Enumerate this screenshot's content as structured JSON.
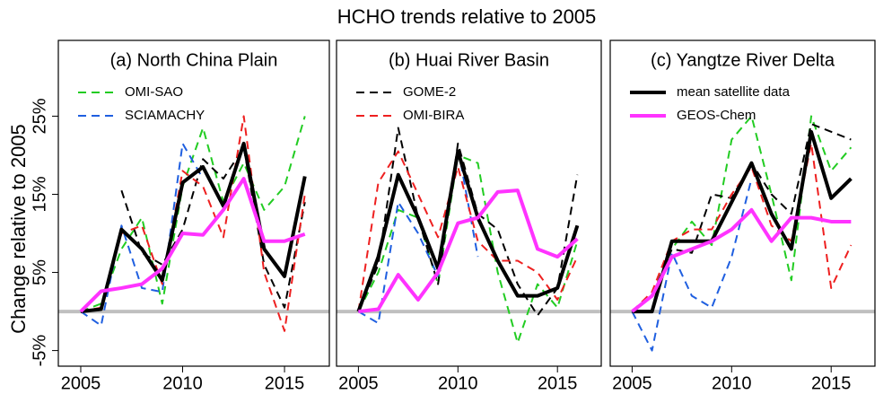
{
  "title": "HCHO trends relative to 2005",
  "y_label": "Change relative to 2005",
  "chart_data": [
    {
      "type": "line",
      "title": "(a) North China Plain",
      "x": [
        2005,
        2006,
        2007,
        2008,
        2009,
        2010,
        2011,
        2012,
        2013,
        2014,
        2015,
        2016
      ],
      "xlim": [
        2003.9,
        2017.2
      ],
      "xticks": [
        2005,
        2010,
        2015
      ],
      "ylim": [
        -7,
        34.7
      ],
      "yticks": [
        {
          "value": -5,
          "label": "-5%"
        },
        {
          "value": 5,
          "label": "5%"
        },
        {
          "value": 15,
          "label": "15%"
        },
        {
          "value": 25,
          "label": "25%"
        }
      ],
      "hline": 0,
      "legend": "top-left",
      "series": [
        {
          "name": "OMI-SAO",
          "color": "#22cc22",
          "style": "dashed",
          "values": [
            0,
            1,
            8,
            12,
            1,
            16,
            23.5,
            14,
            19,
            13,
            16,
            25
          ]
        },
        {
          "name": "SCIAMACHY",
          "color": "#1f5fe0",
          "style": "dashed",
          "values": [
            0,
            -1.8,
            11,
            3,
            2.5,
            21.5,
            17,
            null,
            null,
            null,
            null,
            null
          ]
        },
        {
          "color": "#000000",
          "style": "dashed",
          "values": [
            null,
            null,
            15.5,
            7.5,
            6,
            10.5,
            19.5,
            17,
            21,
            6,
            0.5,
            14
          ]
        },
        {
          "color": "#ee2020",
          "style": "dashed",
          "values": [
            0,
            0.5,
            10,
            11,
            3.5,
            18,
            16,
            9.5,
            25,
            5,
            -2.5,
            15
          ]
        },
        {
          "color": "#000000",
          "style": "bold",
          "values": [
            0,
            0.3,
            10.5,
            8,
            4,
            16.5,
            18.5,
            13.5,
            21.5,
            8,
            4.5,
            17.3
          ]
        },
        {
          "color": "#ff33ff",
          "style": "bold",
          "values": [
            0,
            2.6,
            3,
            3.5,
            5.5,
            10,
            9.8,
            13,
            17,
            9,
            9,
            9.9
          ]
        }
      ]
    },
    {
      "type": "line",
      "title": "(b) Huai River Basin",
      "x": [
        2005,
        2006,
        2007,
        2008,
        2009,
        2010,
        2011,
        2012,
        2013,
        2014,
        2015,
        2016
      ],
      "xlim": [
        2003.9,
        2017.2
      ],
      "xticks": [
        2005,
        2010,
        2015
      ],
      "ylim": [
        -7,
        34.7
      ],
      "hline": 0,
      "legend": "top-left",
      "series": [
        {
          "color": "#22cc22",
          "style": "dashed",
          "values": [
            0,
            5,
            13,
            12,
            3.5,
            20,
            19,
            5,
            -4,
            3.5,
            0.5,
            9
          ]
        },
        {
          "color": "#1f5fe0",
          "style": "dashed",
          "values": [
            0,
            -1.5,
            14,
            10,
            4.5,
            21,
            7,
            null,
            null,
            null,
            null,
            null
          ]
        },
        {
          "name": "GOME-2",
          "color": "#000000",
          "style": "dashed",
          "values": [
            0,
            6,
            23.5,
            12,
            3.5,
            21.5,
            12.5,
            10.5,
            3.5,
            -0.5,
            3,
            17.5
          ]
        },
        {
          "name": "OMI-BIRA",
          "color": "#ee2020",
          "style": "dashed",
          "values": [
            0,
            16.5,
            20.5,
            15,
            9.5,
            18.5,
            9,
            6.5,
            6.5,
            5,
            1.5,
            7
          ]
        },
        {
          "color": "#000000",
          "style": "bold",
          "values": [
            0,
            7,
            17.5,
            12,
            5.5,
            20.5,
            12,
            6.5,
            2,
            2,
            3,
            11
          ]
        },
        {
          "color": "#ff33ff",
          "style": "bold",
          "values": [
            0,
            0.3,
            4.7,
            1.5,
            5,
            11.3,
            12,
            15.3,
            15.5,
            8,
            7,
            9.3
          ]
        }
      ]
    },
    {
      "type": "line",
      "title": "(c) Yangtze River Delta",
      "x": [
        2005,
        2006,
        2007,
        2008,
        2009,
        2010,
        2011,
        2012,
        2013,
        2014,
        2015,
        2016
      ],
      "xlim": [
        2003.9,
        2017.2
      ],
      "xticks": [
        2005,
        2010,
        2015
      ],
      "ylim": [
        -7,
        34.7
      ],
      "hline": 0,
      "legend": "top-left",
      "series": [
        {
          "color": "#22cc22",
          "style": "dashed",
          "values": [
            0,
            2,
            8,
            11.5,
            8.5,
            22,
            25,
            15,
            4,
            25,
            18,
            21
          ]
        },
        {
          "color": "#1f5fe0",
          "style": "dashed",
          "values": [
            0,
            -5,
            7.5,
            2,
            0.5,
            7,
            17,
            null,
            null,
            null,
            null,
            null
          ]
        },
        {
          "color": "#000000",
          "style": "dashed",
          "values": [
            0,
            2,
            8,
            7.5,
            15,
            14.5,
            19,
            15,
            12.5,
            24,
            23,
            22
          ]
        },
        {
          "color": "#ee2020",
          "style": "dashed",
          "values": [
            0,
            2.5,
            9,
            10.5,
            10.5,
            15,
            18.5,
            11,
            9,
            21.5,
            3,
            8.5
          ]
        },
        {
          "name": "mean satellite data",
          "color": "#000000",
          "style": "bold",
          "values": [
            0,
            0,
            9,
            9,
            9,
            14,
            19,
            12.5,
            8,
            23,
            14.5,
            17
          ]
        },
        {
          "name": "GEOS-Chem",
          "color": "#ff33ff",
          "style": "bold",
          "values": [
            0,
            2,
            7,
            8,
            9,
            10.5,
            13,
            9,
            12,
            12,
            11.5,
            11.5
          ]
        }
      ]
    }
  ]
}
